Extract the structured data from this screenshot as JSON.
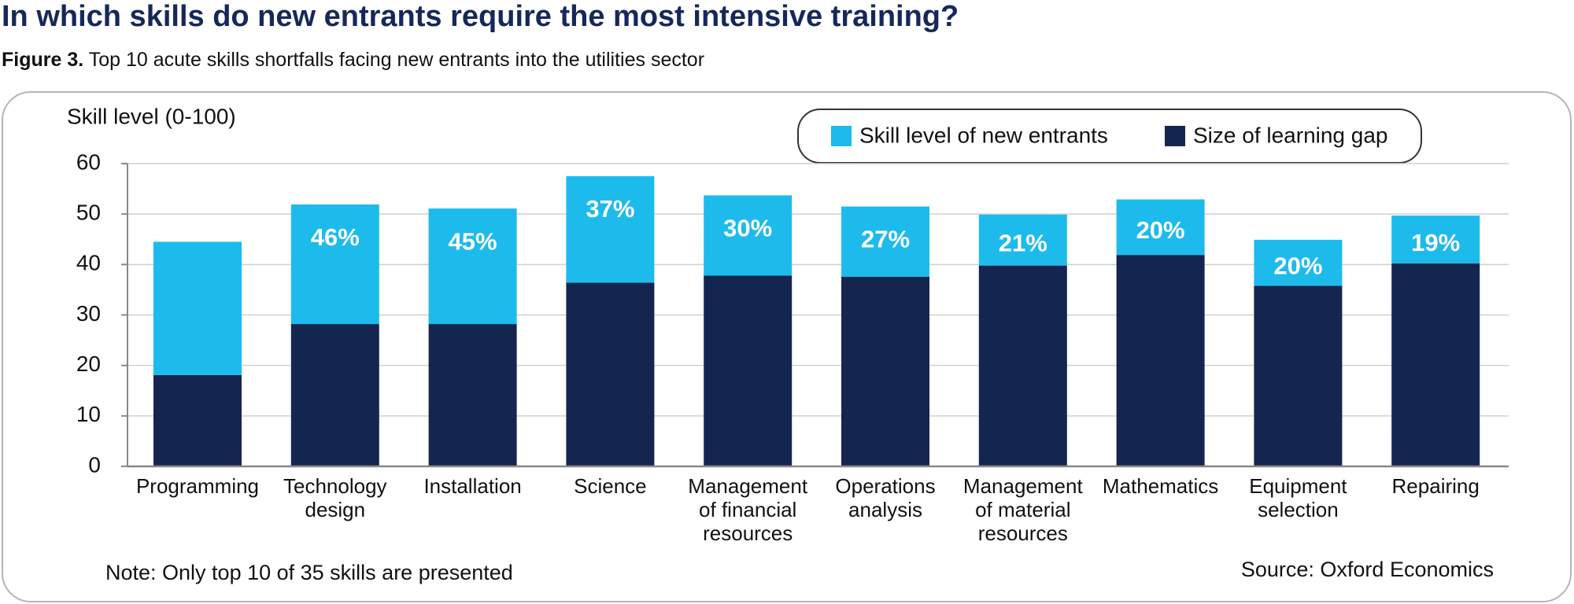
{
  "chart_data": {
    "type": "stacked_bar",
    "title": "In which skills do new entrants require the most intensive training?",
    "figure_label": "Figure 3.",
    "subtitle": "Top 10 acute skills shortfalls facing new entrants into the utilities sector",
    "y_axis_label": "Skill level (0-100)",
    "note": "Note: Only top 10 of 35 skills are presented",
    "source": "Source: Oxford Economics",
    "categories": [
      "Programming",
      "Technology design",
      "Installation",
      "Science",
      "Management of financial resources",
      "Operations analysis",
      "Management of material resources",
      "Mathematics",
      "Equipment selection",
      "Repairing"
    ],
    "series": [
      {
        "name": "Size of learning gap",
        "color": "#14264f",
        "values": [
          18.1,
          28.2,
          28.2,
          36.4,
          37.8,
          37.6,
          39.8,
          41.9,
          35.8,
          40.2
        ]
      },
      {
        "name": "Skill level of new entrants",
        "color": "#1dbbec",
        "values": [
          26.4,
          23.7,
          22.9,
          21.1,
          15.9,
          13.9,
          10.1,
          11.0,
          9.1,
          9.5
        ]
      }
    ],
    "legend_order": [
      1,
      0
    ],
    "annotations": [
      null,
      "46%",
      "45%",
      "37%",
      "30%",
      "27%",
      "21%",
      "20%",
      "20%",
      "19%"
    ],
    "ylim": [
      0,
      60
    ],
    "yticks": [
      0,
      10,
      20,
      30,
      40,
      50,
      60
    ],
    "grid": true
  }
}
